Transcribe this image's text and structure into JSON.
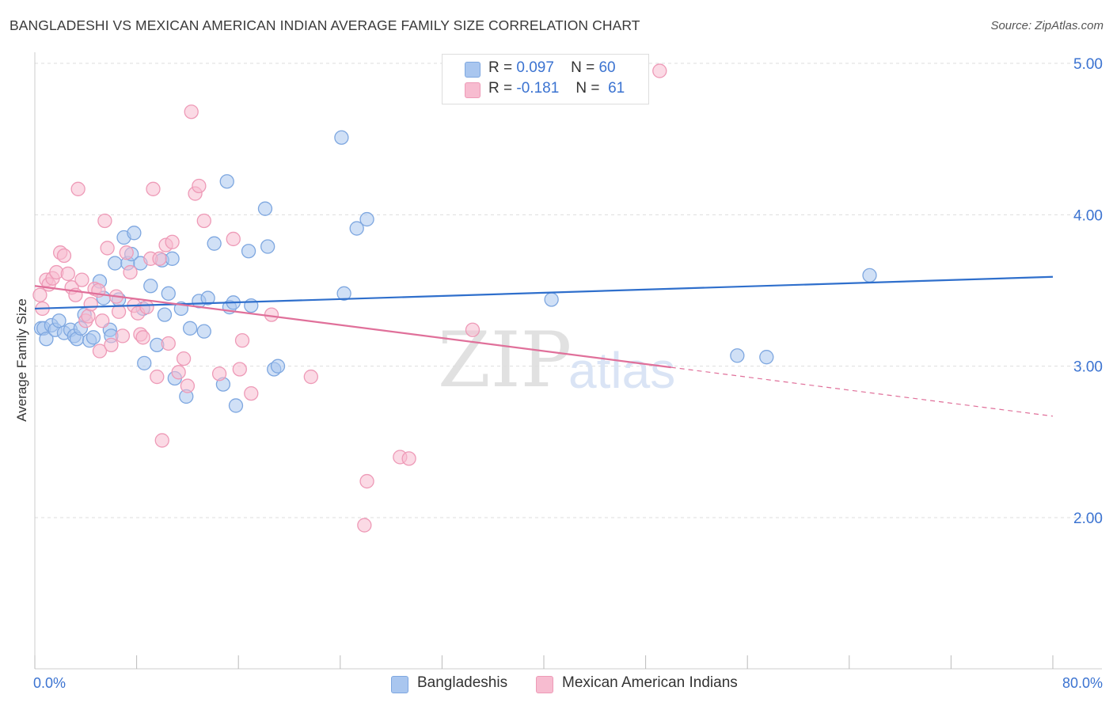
{
  "title": "BANGLADESHI VS MEXICAN AMERICAN INDIAN AVERAGE FAMILY SIZE CORRELATION CHART",
  "source": "Source: ZipAtlas.com",
  "watermark": {
    "part1": "ZIP",
    "part2": "atlas"
  },
  "legend": {
    "rows": [
      {
        "r_label": "R =",
        "r_value": "0.097",
        "n_label": "N =",
        "n_value": "60"
      },
      {
        "r_label": "R =",
        "r_value": "-0.181",
        "n_label": "N =",
        "n_value": "61"
      }
    ]
  },
  "colors": {
    "blue_fill": "#a9c6ef",
    "blue_stroke": "#7ea7e0",
    "blue_line": "#2f6fcc",
    "pink_fill": "#f7bcd0",
    "pink_stroke": "#ee9ab7",
    "pink_line": "#e0709a",
    "axis_text": "#3b73d1",
    "grid": "#dddddd"
  },
  "chart_data": {
    "type": "scatter",
    "title": "BANGLADESHI VS MEXICAN AMERICAN INDIAN AVERAGE FAMILY SIZE CORRELATION CHART",
    "xlabel": "",
    "ylabel": "Average Family Size",
    "xlim": [
      0,
      80
    ],
    "ylim": [
      1.0,
      5.1
    ],
    "x_tick_labels": [
      "0.0%",
      "80.0%"
    ],
    "y_ticks": [
      2.0,
      3.0,
      4.0,
      5.0
    ],
    "y_tick_labels": [
      "2.00",
      "3.00",
      "4.00",
      "5.00"
    ],
    "grid": "horizontal dashed",
    "legend_position": "top-center",
    "series": [
      {
        "name": "Bangladeshis",
        "color": "#a9c6ef",
        "r": 0.097,
        "n": 60,
        "trend": {
          "x": [
            0,
            80
          ],
          "y": [
            3.38,
            3.59
          ],
          "dashed_from": null
        },
        "points": [
          [
            0.5,
            3.25
          ],
          [
            0.7,
            3.25
          ],
          [
            0.9,
            3.18
          ],
          [
            1.3,
            3.27
          ],
          [
            1.6,
            3.24
          ],
          [
            1.9,
            3.3
          ],
          [
            2.3,
            3.22
          ],
          [
            2.8,
            3.24
          ],
          [
            3.1,
            3.2
          ],
          [
            3.3,
            3.18
          ],
          [
            3.6,
            3.25
          ],
          [
            3.9,
            3.34
          ],
          [
            4.3,
            3.17
          ],
          [
            4.6,
            3.19
          ],
          [
            5.1,
            3.56
          ],
          [
            5.4,
            3.45
          ],
          [
            5.9,
            3.24
          ],
          [
            6.3,
            3.68
          ],
          [
            6.6,
            3.44
          ],
          [
            7.0,
            3.85
          ],
          [
            7.3,
            3.68
          ],
          [
            7.6,
            3.74
          ],
          [
            7.8,
            3.88
          ],
          [
            8.3,
            3.68
          ],
          [
            8.6,
            3.02
          ],
          [
            9.1,
            3.53
          ],
          [
            9.6,
            3.14
          ],
          [
            10.0,
            3.7
          ],
          [
            10.2,
            3.34
          ],
          [
            10.5,
            3.48
          ],
          [
            10.8,
            3.71
          ],
          [
            11.0,
            2.92
          ],
          [
            11.5,
            3.38
          ],
          [
            11.9,
            2.8
          ],
          [
            12.2,
            3.25
          ],
          [
            12.9,
            3.43
          ],
          [
            13.3,
            3.23
          ],
          [
            13.6,
            3.45
          ],
          [
            14.1,
            3.81
          ],
          [
            14.8,
            2.88
          ],
          [
            15.1,
            4.22
          ],
          [
            15.3,
            3.39
          ],
          [
            15.6,
            3.42
          ],
          [
            15.8,
            2.74
          ],
          [
            16.8,
            3.76
          ],
          [
            17.0,
            3.4
          ],
          [
            18.1,
            4.04
          ],
          [
            18.3,
            3.79
          ],
          [
            18.8,
            2.98
          ],
          [
            19.1,
            3.0
          ],
          [
            24.1,
            4.51
          ],
          [
            24.3,
            3.48
          ],
          [
            25.3,
            3.91
          ],
          [
            26.1,
            3.97
          ],
          [
            40.6,
            3.44
          ],
          [
            65.6,
            3.6
          ],
          [
            55.2,
            3.07
          ],
          [
            57.5,
            3.06
          ],
          [
            8.5,
            3.38
          ],
          [
            6.0,
            3.2
          ]
        ]
      },
      {
        "name": "Mexican American Indians",
        "color": "#f7bcd0",
        "r": -0.181,
        "n": 61,
        "trend": {
          "x": [
            0,
            80
          ],
          "y": [
            3.53,
            2.67
          ],
          "dashed_from": 50
        },
        "points": [
          [
            0.4,
            3.47
          ],
          [
            0.6,
            3.38
          ],
          [
            0.9,
            3.57
          ],
          [
            1.1,
            3.54
          ],
          [
            1.4,
            3.58
          ],
          [
            1.7,
            3.62
          ],
          [
            2.0,
            3.75
          ],
          [
            2.3,
            3.73
          ],
          [
            2.6,
            3.61
          ],
          [
            2.9,
            3.52
          ],
          [
            3.2,
            3.47
          ],
          [
            3.4,
            4.17
          ],
          [
            3.7,
            3.57
          ],
          [
            4.0,
            3.3
          ],
          [
            4.2,
            3.33
          ],
          [
            4.4,
            3.41
          ],
          [
            4.7,
            3.51
          ],
          [
            5.0,
            3.5
          ],
          [
            5.1,
            3.1
          ],
          [
            5.3,
            3.3
          ],
          [
            5.5,
            3.96
          ],
          [
            5.7,
            3.78
          ],
          [
            6.0,
            3.14
          ],
          [
            6.4,
            3.46
          ],
          [
            6.6,
            3.36
          ],
          [
            6.9,
            3.2
          ],
          [
            7.2,
            3.75
          ],
          [
            7.5,
            3.62
          ],
          [
            7.8,
            3.4
          ],
          [
            8.1,
            3.35
          ],
          [
            8.3,
            3.21
          ],
          [
            8.5,
            3.19
          ],
          [
            8.8,
            3.39
          ],
          [
            9.1,
            3.71
          ],
          [
            9.3,
            4.17
          ],
          [
            9.6,
            2.93
          ],
          [
            9.8,
            3.71
          ],
          [
            10.0,
            2.51
          ],
          [
            10.3,
            3.8
          ],
          [
            10.5,
            3.15
          ],
          [
            10.8,
            3.82
          ],
          [
            11.3,
            2.96
          ],
          [
            11.7,
            3.05
          ],
          [
            12.0,
            2.87
          ],
          [
            12.3,
            4.68
          ],
          [
            12.6,
            4.14
          ],
          [
            12.9,
            4.19
          ],
          [
            13.3,
            3.96
          ],
          [
            14.5,
            2.95
          ],
          [
            15.6,
            3.84
          ],
          [
            16.1,
            2.98
          ],
          [
            16.3,
            3.17
          ],
          [
            17.0,
            2.82
          ],
          [
            18.6,
            3.34
          ],
          [
            21.7,
            2.93
          ],
          [
            26.1,
            2.24
          ],
          [
            25.9,
            1.95
          ],
          [
            28.7,
            2.4
          ],
          [
            29.4,
            2.39
          ],
          [
            34.4,
            3.24
          ],
          [
            49.1,
            4.95
          ]
        ]
      }
    ]
  },
  "bottom_legend": {
    "items": [
      {
        "label": "Bangladeshis"
      },
      {
        "label": "Mexican American Indians"
      }
    ]
  }
}
